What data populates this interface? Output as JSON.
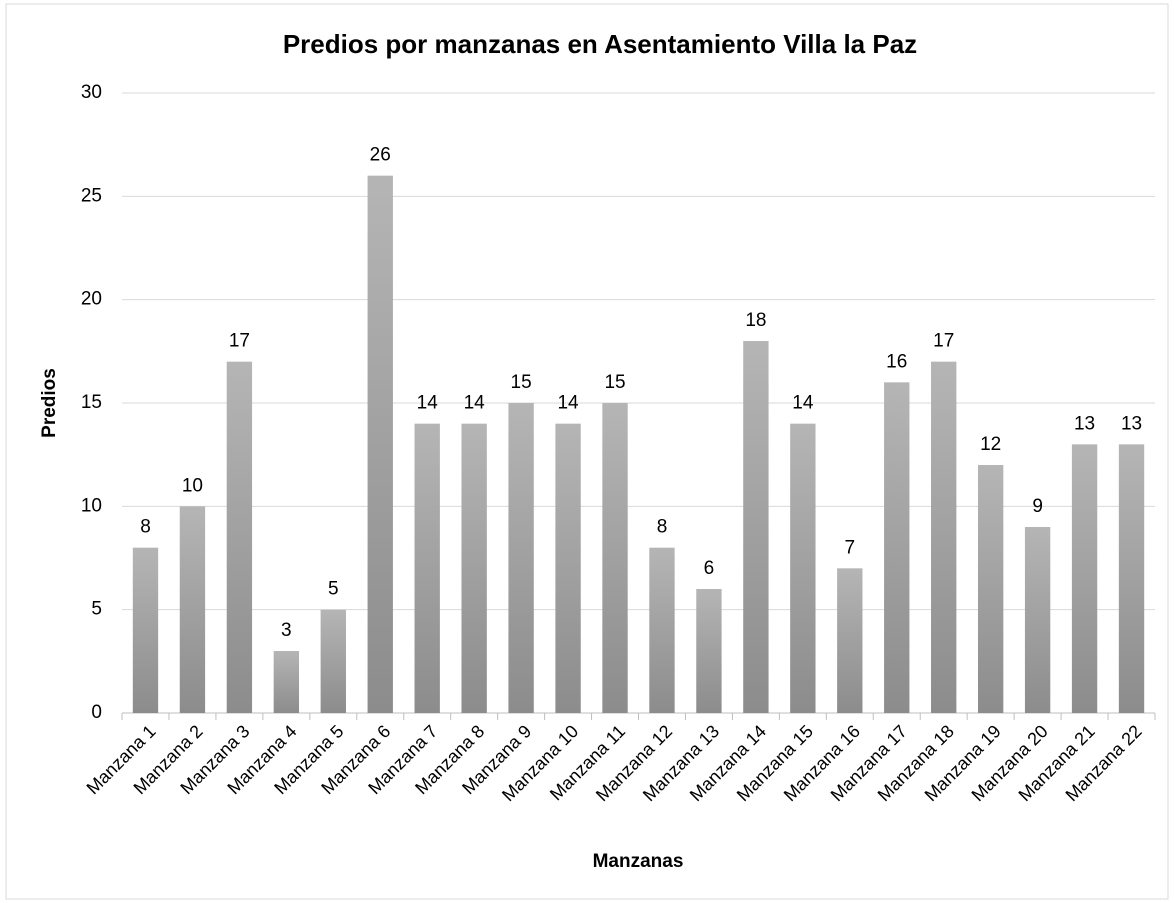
{
  "chart_data": {
    "type": "bar",
    "title": "Predios por manzanas en Asentamiento Villa la Paz",
    "x_label": "Manzanas",
    "y_label": "Predios",
    "categories": [
      "Manzana 1",
      "Manzana 2",
      "Manzana 3",
      "Manzana 4",
      "Manzana 5",
      "Manzana 6",
      "Manzana 7",
      "Manzana 8",
      "Manzana 9",
      "Manzana 10",
      "Manzana 11",
      "Manzana 12",
      "Manzana 13",
      "Manzana 14",
      "Manzana 15",
      "Manzana 16",
      "Manzana 17",
      "Manzana 18",
      "Manzana 19",
      "Manzana 20",
      "Manzana 21",
      "Manzana 22"
    ],
    "values": [
      8,
      10,
      17,
      3,
      5,
      26,
      14,
      14,
      15,
      14,
      15,
      8,
      6,
      18,
      14,
      7,
      16,
      17,
      12,
      9,
      13,
      13
    ],
    "color": [
      "#b5b5b5",
      "#8c8c8c"
    ],
    "ylim": [
      0,
      30
    ],
    "yticks": [
      0,
      5,
      10,
      15,
      20,
      25,
      30
    ],
    "grid": true,
    "data_labels": true
  }
}
